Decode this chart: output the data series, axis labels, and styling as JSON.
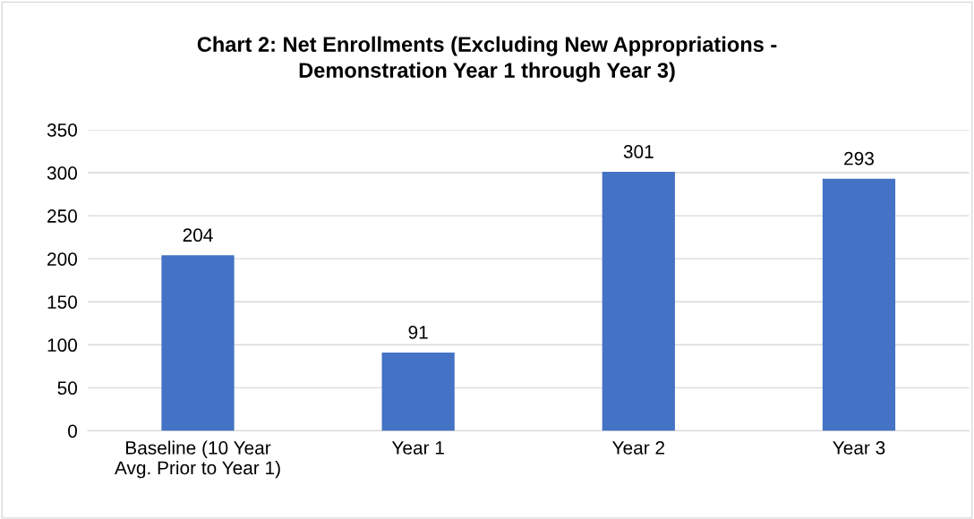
{
  "chart_data": {
    "type": "bar",
    "title": "Chart 2: Net Enrollments (Excluding New Appropriations -\nDemonstration Year 1 through Year 3)",
    "categories": [
      "Baseline (10 Year\nAvg. Prior to Year 1)",
      "Year 1",
      "Year 2",
      "Year 3"
    ],
    "values": [
      204,
      91,
      301,
      293
    ],
    "color": "#4472c4",
    "ylim": [
      0,
      350
    ],
    "yticks": [
      0,
      50,
      100,
      150,
      200,
      250,
      300,
      350
    ],
    "grid": "y",
    "data_labels": true
  }
}
